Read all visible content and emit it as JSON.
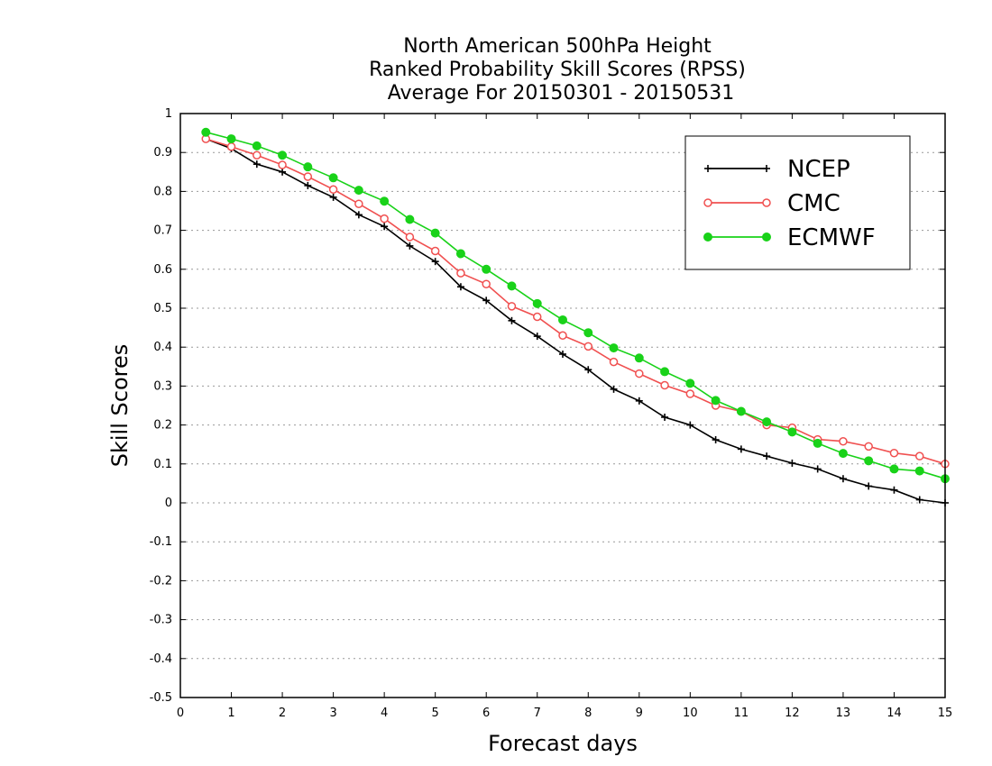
{
  "chart_data": {
    "type": "line",
    "title": [
      "North American 500hPa Height",
      "Ranked Probability Skill Scores (RPSS)",
      "Average For 20150301 - 20150531"
    ],
    "xlabel": "Forecast days",
    "ylabel": "Skill Scores",
    "xlim": [
      0,
      15
    ],
    "ylim": [
      -0.5,
      1
    ],
    "xticks": [
      "0",
      "1",
      "2",
      "3",
      "4",
      "5",
      "6",
      "7",
      "8",
      "9",
      "10",
      "11",
      "12",
      "13",
      "14",
      "15"
    ],
    "yticks": [
      "-0.5",
      "-0.4",
      "-0.3",
      "-0.2",
      "-0.1",
      "0",
      "0.1",
      "0.2",
      "0.3",
      "0.4",
      "0.5",
      "0.6",
      "0.7",
      "0.8",
      "0.9",
      "1"
    ],
    "grid": "horizontal dotted",
    "legend_position": "top-right",
    "x": [
      0.5,
      1,
      1.5,
      2,
      2.5,
      3,
      3.5,
      4,
      4.5,
      5,
      5.5,
      6,
      6.5,
      7,
      7.5,
      8,
      8.5,
      9,
      9.5,
      10,
      10.5,
      11,
      11.5,
      12,
      12.5,
      13,
      13.5,
      14,
      14.5,
      15
    ],
    "series": [
      {
        "name": "NCEP",
        "color": "#000000",
        "marker": "plus",
        "values": [
          0.935,
          0.91,
          0.87,
          0.85,
          0.815,
          0.785,
          0.74,
          0.71,
          0.66,
          0.62,
          0.555,
          0.52,
          0.468,
          0.428,
          0.382,
          0.342,
          0.292,
          0.262,
          0.22,
          0.2,
          0.162,
          0.138,
          0.12,
          0.102,
          0.087,
          0.062,
          0.043,
          0.033,
          0.008,
          0.0
        ]
      },
      {
        "name": "CMC",
        "color": "#f05050",
        "marker": "open-circle",
        "values": [
          0.935,
          0.915,
          0.893,
          0.868,
          0.838,
          0.805,
          0.768,
          0.73,
          0.683,
          0.647,
          0.59,
          0.562,
          0.505,
          0.478,
          0.43,
          0.402,
          0.362,
          0.332,
          0.302,
          0.28,
          0.25,
          0.235,
          0.2,
          0.193,
          0.163,
          0.158,
          0.145,
          0.128,
          0.12,
          0.1
        ]
      },
      {
        "name": "ECMWF",
        "color": "#19d219",
        "marker": "filled-circle",
        "values": [
          0.952,
          0.935,
          0.917,
          0.893,
          0.863,
          0.835,
          0.803,
          0.775,
          0.728,
          0.693,
          0.64,
          0.6,
          0.557,
          0.512,
          0.47,
          0.437,
          0.398,
          0.372,
          0.337,
          0.307,
          0.263,
          0.235,
          0.208,
          0.182,
          0.153,
          0.127,
          0.108,
          0.087,
          0.082,
          0.062
        ]
      }
    ]
  }
}
